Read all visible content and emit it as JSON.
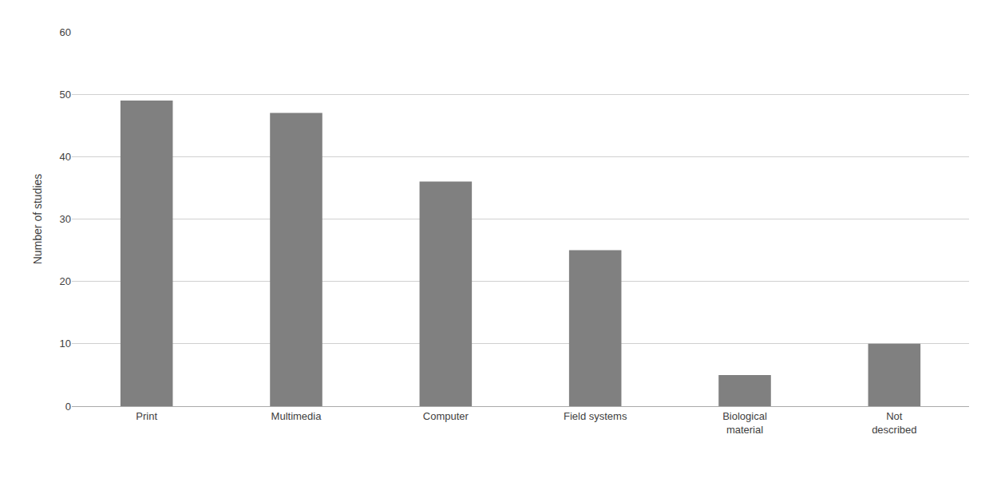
{
  "chart_data": {
    "type": "bar",
    "categories": [
      "Print",
      "Multimedia",
      "Computer",
      "Field systems",
      "Biological\nmaterial",
      "Not\ndescribed"
    ],
    "values": [
      49,
      47,
      36,
      25,
      5,
      10
    ],
    "color": "#808080",
    "ylabel": "Number of studies",
    "ylim": [
      0,
      60
    ],
    "yticks": [
      0,
      10,
      20,
      30,
      40,
      50,
      60
    ],
    "grid": true
  }
}
